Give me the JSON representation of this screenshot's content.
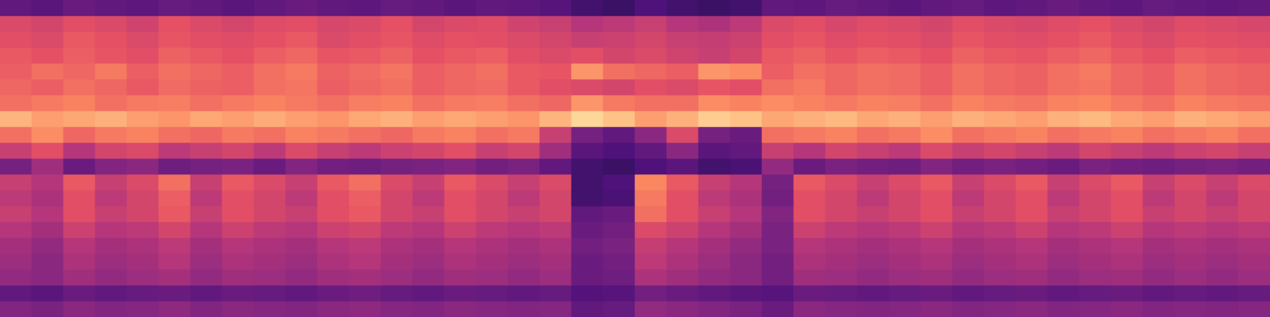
{
  "chart_data": {
    "type": "heatmap",
    "tick_labels": false,
    "grid": false,
    "cells": [
      [
        0.3,
        0.28,
        0.32,
        0.3,
        0.29,
        0.31,
        0.3,
        0.28,
        0.3,
        0.32,
        0.3,
        0.29,
        0.31,
        0.3,
        0.28,
        0.3,
        0.29,
        0.27,
        0.22,
        0.2,
        0.25,
        0.22,
        0.2,
        0.22,
        0.3,
        0.29,
        0.31,
        0.3,
        0.28,
        0.3,
        0.31,
        0.29,
        0.3,
        0.32,
        0.3,
        0.29,
        0.31,
        0.3,
        0.29,
        0.3
      ],
      [
        0.6,
        0.58,
        0.62,
        0.6,
        0.57,
        0.63,
        0.6,
        0.58,
        0.61,
        0.62,
        0.59,
        0.6,
        0.63,
        0.58,
        0.6,
        0.61,
        0.57,
        0.55,
        0.5,
        0.52,
        0.55,
        0.5,
        0.48,
        0.52,
        0.6,
        0.62,
        0.59,
        0.61,
        0.6,
        0.58,
        0.62,
        0.6,
        0.59,
        0.61,
        0.63,
        0.6,
        0.58,
        0.61,
        0.6,
        0.59
      ],
      [
        0.62,
        0.6,
        0.65,
        0.63,
        0.6,
        0.64,
        0.62,
        0.61,
        0.63,
        0.65,
        0.6,
        0.62,
        0.64,
        0.61,
        0.63,
        0.62,
        0.6,
        0.58,
        0.55,
        0.56,
        0.58,
        0.55,
        0.54,
        0.56,
        0.62,
        0.64,
        0.61,
        0.63,
        0.62,
        0.6,
        0.64,
        0.62,
        0.61,
        0.63,
        0.65,
        0.62,
        0.6,
        0.63,
        0.62,
        0.61
      ],
      [
        0.65,
        0.63,
        0.66,
        0.64,
        0.62,
        0.67,
        0.65,
        0.63,
        0.66,
        0.68,
        0.64,
        0.65,
        0.67,
        0.63,
        0.65,
        0.66,
        0.62,
        0.6,
        0.62,
        0.58,
        0.6,
        0.57,
        0.55,
        0.58,
        0.65,
        0.67,
        0.64,
        0.66,
        0.65,
        0.63,
        0.67,
        0.65,
        0.64,
        0.66,
        0.68,
        0.65,
        0.63,
        0.66,
        0.65,
        0.64
      ],
      [
        0.66,
        0.7,
        0.68,
        0.72,
        0.66,
        0.7,
        0.68,
        0.66,
        0.7,
        0.72,
        0.67,
        0.69,
        0.71,
        0.66,
        0.68,
        0.7,
        0.65,
        0.64,
        0.78,
        0.7,
        0.68,
        0.66,
        0.78,
        0.76,
        0.66,
        0.7,
        0.68,
        0.7,
        0.69,
        0.66,
        0.7,
        0.68,
        0.67,
        0.7,
        0.72,
        0.68,
        0.66,
        0.7,
        0.68,
        0.67
      ],
      [
        0.68,
        0.66,
        0.7,
        0.68,
        0.65,
        0.69,
        0.67,
        0.66,
        0.7,
        0.71,
        0.66,
        0.68,
        0.7,
        0.66,
        0.68,
        0.69,
        0.65,
        0.62,
        0.6,
        0.58,
        0.62,
        0.6,
        0.64,
        0.62,
        0.7,
        0.72,
        0.68,
        0.7,
        0.69,
        0.66,
        0.7,
        0.68,
        0.67,
        0.7,
        0.71,
        0.68,
        0.66,
        0.7,
        0.68,
        0.67
      ],
      [
        0.7,
        0.72,
        0.74,
        0.7,
        0.72,
        0.73,
        0.7,
        0.72,
        0.74,
        0.72,
        0.7,
        0.73,
        0.74,
        0.7,
        0.72,
        0.73,
        0.7,
        0.68,
        0.78,
        0.72,
        0.7,
        0.7,
        0.76,
        0.74,
        0.76,
        0.74,
        0.72,
        0.74,
        0.73,
        0.7,
        0.74,
        0.72,
        0.71,
        0.74,
        0.75,
        0.72,
        0.7,
        0.74,
        0.72,
        0.71
      ],
      [
        0.85,
        0.8,
        0.82,
        0.84,
        0.8,
        0.78,
        0.82,
        0.8,
        0.83,
        0.8,
        0.78,
        0.82,
        0.84,
        0.8,
        0.82,
        0.8,
        0.78,
        0.85,
        0.92,
        0.88,
        0.8,
        0.84,
        0.9,
        0.88,
        0.82,
        0.84,
        0.86,
        0.82,
        0.84,
        0.8,
        0.84,
        0.82,
        0.8,
        0.84,
        0.86,
        0.82,
        0.8,
        0.84,
        0.82,
        0.8
      ],
      [
        0.7,
        0.76,
        0.68,
        0.72,
        0.74,
        0.7,
        0.68,
        0.72,
        0.7,
        0.74,
        0.72,
        0.7,
        0.68,
        0.72,
        0.74,
        0.7,
        0.72,
        0.55,
        0.35,
        0.3,
        0.4,
        0.6,
        0.35,
        0.32,
        0.7,
        0.72,
        0.74,
        0.7,
        0.72,
        0.76,
        0.7,
        0.72,
        0.74,
        0.7,
        0.72,
        0.74,
        0.7,
        0.72,
        0.74,
        0.7
      ],
      [
        0.55,
        0.62,
        0.5,
        0.58,
        0.6,
        0.52,
        0.55,
        0.58,
        0.52,
        0.6,
        0.55,
        0.52,
        0.56,
        0.58,
        0.62,
        0.55,
        0.58,
        0.45,
        0.28,
        0.25,
        0.3,
        0.4,
        0.28,
        0.3,
        0.55,
        0.5,
        0.58,
        0.55,
        0.52,
        0.6,
        0.55,
        0.58,
        0.55,
        0.52,
        0.58,
        0.55,
        0.52,
        0.56,
        0.58,
        0.55
      ],
      [
        0.35,
        0.45,
        0.32,
        0.38,
        0.4,
        0.33,
        0.35,
        0.36,
        0.32,
        0.38,
        0.34,
        0.33,
        0.35,
        0.36,
        0.38,
        0.34,
        0.36,
        0.3,
        0.22,
        0.2,
        0.25,
        0.28,
        0.22,
        0.24,
        0.42,
        0.32,
        0.36,
        0.34,
        0.33,
        0.38,
        0.34,
        0.36,
        0.34,
        0.32,
        0.36,
        0.34,
        0.33,
        0.35,
        0.36,
        0.34
      ],
      [
        0.55,
        0.5,
        0.65,
        0.55,
        0.6,
        0.7,
        0.55,
        0.65,
        0.6,
        0.55,
        0.65,
        0.7,
        0.6,
        0.55,
        0.65,
        0.6,
        0.55,
        0.6,
        0.22,
        0.25,
        0.75,
        0.65,
        0.55,
        0.5,
        0.35,
        0.65,
        0.6,
        0.55,
        0.6,
        0.65,
        0.55,
        0.6,
        0.65,
        0.55,
        0.6,
        0.65,
        0.55,
        0.6,
        0.55,
        0.6
      ],
      [
        0.52,
        0.48,
        0.62,
        0.52,
        0.58,
        0.66,
        0.52,
        0.62,
        0.58,
        0.52,
        0.62,
        0.66,
        0.58,
        0.52,
        0.62,
        0.58,
        0.52,
        0.58,
        0.22,
        0.24,
        0.72,
        0.62,
        0.52,
        0.48,
        0.34,
        0.62,
        0.58,
        0.52,
        0.58,
        0.62,
        0.52,
        0.58,
        0.62,
        0.52,
        0.58,
        0.62,
        0.52,
        0.58,
        0.52,
        0.58
      ],
      [
        0.55,
        0.5,
        0.62,
        0.55,
        0.58,
        0.65,
        0.55,
        0.62,
        0.58,
        0.55,
        0.62,
        0.65,
        0.58,
        0.55,
        0.62,
        0.58,
        0.55,
        0.58,
        0.3,
        0.32,
        0.7,
        0.62,
        0.55,
        0.5,
        0.38,
        0.62,
        0.58,
        0.55,
        0.58,
        0.62,
        0.55,
        0.58,
        0.62,
        0.55,
        0.58,
        0.62,
        0.55,
        0.58,
        0.55,
        0.58
      ],
      [
        0.5,
        0.46,
        0.56,
        0.5,
        0.52,
        0.58,
        0.5,
        0.56,
        0.52,
        0.5,
        0.56,
        0.58,
        0.52,
        0.5,
        0.56,
        0.52,
        0.5,
        0.52,
        0.32,
        0.34,
        0.6,
        0.56,
        0.5,
        0.46,
        0.36,
        0.56,
        0.52,
        0.5,
        0.52,
        0.56,
        0.5,
        0.52,
        0.56,
        0.5,
        0.52,
        0.56,
        0.5,
        0.52,
        0.5,
        0.52
      ],
      [
        0.46,
        0.42,
        0.5,
        0.46,
        0.48,
        0.52,
        0.46,
        0.5,
        0.48,
        0.46,
        0.5,
        0.52,
        0.48,
        0.46,
        0.5,
        0.48,
        0.46,
        0.48,
        0.34,
        0.36,
        0.54,
        0.5,
        0.46,
        0.42,
        0.36,
        0.5,
        0.48,
        0.46,
        0.48,
        0.5,
        0.46,
        0.48,
        0.5,
        0.46,
        0.48,
        0.5,
        0.46,
        0.48,
        0.46,
        0.48
      ],
      [
        0.44,
        0.4,
        0.48,
        0.44,
        0.46,
        0.5,
        0.44,
        0.48,
        0.46,
        0.44,
        0.48,
        0.5,
        0.46,
        0.44,
        0.48,
        0.46,
        0.44,
        0.46,
        0.32,
        0.34,
        0.52,
        0.48,
        0.44,
        0.4,
        0.34,
        0.48,
        0.46,
        0.44,
        0.46,
        0.48,
        0.44,
        0.46,
        0.48,
        0.44,
        0.46,
        0.48,
        0.44,
        0.46,
        0.44,
        0.46
      ],
      [
        0.42,
        0.4,
        0.45,
        0.42,
        0.44,
        0.46,
        0.42,
        0.45,
        0.44,
        0.42,
        0.45,
        0.46,
        0.44,
        0.42,
        0.45,
        0.44,
        0.42,
        0.44,
        0.32,
        0.33,
        0.48,
        0.45,
        0.42,
        0.4,
        0.34,
        0.45,
        0.44,
        0.42,
        0.44,
        0.45,
        0.42,
        0.44,
        0.45,
        0.42,
        0.44,
        0.45,
        0.42,
        0.44,
        0.42,
        0.44
      ],
      [
        0.3,
        0.28,
        0.32,
        0.3,
        0.31,
        0.32,
        0.3,
        0.32,
        0.31,
        0.3,
        0.32,
        0.33,
        0.31,
        0.3,
        0.32,
        0.31,
        0.3,
        0.31,
        0.26,
        0.27,
        0.34,
        0.32,
        0.3,
        0.28,
        0.27,
        0.32,
        0.31,
        0.3,
        0.31,
        0.32,
        0.3,
        0.31,
        0.32,
        0.3,
        0.31,
        0.32,
        0.3,
        0.31,
        0.3,
        0.31
      ],
      [
        0.38,
        0.36,
        0.4,
        0.38,
        0.39,
        0.41,
        0.38,
        0.4,
        0.39,
        0.38,
        0.4,
        0.41,
        0.39,
        0.38,
        0.4,
        0.39,
        0.38,
        0.39,
        0.3,
        0.31,
        0.42,
        0.4,
        0.38,
        0.36,
        0.32,
        0.4,
        0.39,
        0.38,
        0.39,
        0.4,
        0.38,
        0.39,
        0.4,
        0.38,
        0.39,
        0.4,
        0.38,
        0.39,
        0.38,
        0.39
      ]
    ]
  }
}
